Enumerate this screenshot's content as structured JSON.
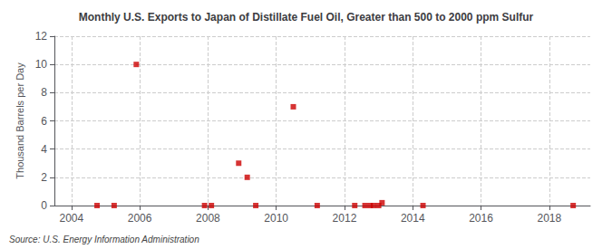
{
  "chart_data": {
    "type": "scatter",
    "title": "Monthly U.S. Exports to Japan of Distillate Fuel Oil, Greater than 500 to 2000 ppm Sulfur",
    "ylabel": "Thousand Barrels per Day",
    "annotation": "Source: U.S. Energy Information Administration",
    "x": [
      2004.75,
      2005.25,
      2005.9,
      2007.9,
      2008.1,
      2008.9,
      2009.15,
      2009.4,
      2010.5,
      2011.2,
      2012.3,
      2012.6,
      2012.75,
      2012.85,
      2013.0,
      2013.1,
      2014.3,
      2018.7
    ],
    "values": [
      0.0,
      0.0,
      10.0,
      0.0,
      0.0,
      3.0,
      2.0,
      0.0,
      7.0,
      0.0,
      0.0,
      0.0,
      0.0,
      0.0,
      0.0,
      0.2,
      0.0,
      0.0
    ],
    "color": "#cc0000",
    "marker": "square",
    "xlim": [
      2003.5,
      2019.2
    ],
    "xticks": [
      2004,
      2006,
      2008,
      2010,
      2012,
      2014,
      2016,
      2018
    ],
    "ylim": [
      0,
      12
    ],
    "yticks": [
      0,
      2,
      4,
      6,
      8,
      10,
      12
    ],
    "grid": true
  }
}
